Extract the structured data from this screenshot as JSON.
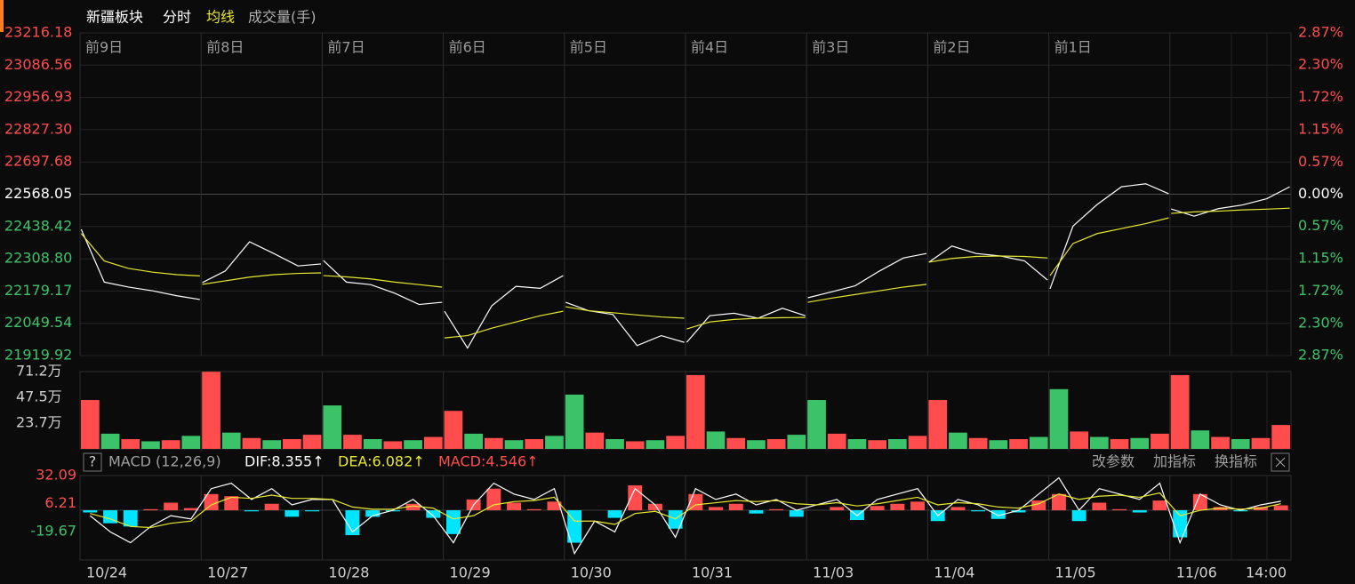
{
  "header": {
    "title": "新疆板块"
  },
  "x_labels": [
    "10/24",
    "10/27",
    "10/28",
    "10/29",
    "10/30",
    "10/31",
    "11/03",
    "11/04",
    "11/05",
    "11/06",
    "14:00"
  ],
  "chart_data": [
    {
      "type": "line",
      "day_labels": [
        "前9日",
        "前8日",
        "前7日",
        "前6日",
        "前5日",
        "前4日",
        "前3日",
        "前2日",
        "前1日"
      ],
      "xlim": [
        0,
        10
      ],
      "ylim": [
        21919.92,
        23216.18
      ],
      "yticks": [
        23216.18,
        23086.56,
        22956.93,
        {
          "value": 22827.3,
          "label": "22827.30"
        },
        22697.68,
        22568.05,
        22438.42,
        {
          "value": 22308.8,
          "label": "22308.80"
        },
        22179.17,
        22049.54,
        21919.92
      ],
      "y2lim": [
        -2.87,
        2.87
      ],
      "y2ticks": [
        {
          "value": 2.87,
          "label": "2.87%"
        },
        {
          "value": 2.3,
          "label": "2.30%"
        },
        {
          "value": 1.72,
          "label": "1.72%"
        },
        {
          "value": 1.15,
          "label": "1.15%"
        },
        {
          "value": 0.57,
          "label": "0.57%"
        },
        {
          "value": 0,
          "label": "0.00%"
        },
        {
          "value": -0.57,
          "label": "0.57%"
        },
        {
          "value": -1.15,
          "label": "1.15%"
        },
        {
          "value": -1.72,
          "label": "1.72%"
        },
        {
          "value": -2.3,
          "label": "2.30%"
        },
        {
          "value": -2.87,
          "label": "2.87%"
        }
      ],
      "grid": true,
      "x": [
        0.01,
        0.2,
        0.4,
        0.6,
        0.8,
        0.99,
        1,
        1.01,
        1.2,
        1.4,
        1.6,
        1.8,
        1.99,
        2,
        2.01,
        2.2,
        2.4,
        2.6,
        2.8,
        2.99,
        3,
        3.01,
        3.2,
        3.4,
        3.6,
        3.8,
        3.99,
        4,
        4.01,
        4.2,
        4.4,
        4.6,
        4.8,
        4.99,
        5,
        5.01,
        5.2,
        5.4,
        5.6,
        5.8,
        5.99,
        6,
        6.01,
        6.2,
        6.4,
        6.6,
        6.8,
        6.99,
        7,
        7.01,
        7.2,
        7.4,
        7.6,
        7.8,
        7.99,
        8,
        8.01,
        8.2,
        8.4,
        8.6,
        8.8,
        8.99,
        9,
        9.01,
        9.2,
        9.4,
        9.6,
        9.8,
        9.99
      ],
      "series": [
        {
          "name": "分时",
          "color": "#ffffff",
          "values": [
            22427,
            22215,
            22195,
            22180,
            22160,
            22145,
            null,
            22213,
            22260,
            22377,
            22330,
            22280,
            22288,
            null,
            22302,
            22215,
            22205,
            22170,
            22125,
            22134,
            null,
            22098,
            21950,
            22120,
            22198,
            22190,
            22241,
            null,
            22134,
            22100,
            22085,
            21960,
            22000,
            21973,
            null,
            21973,
            22080,
            22090,
            22070,
            22110,
            22080,
            null,
            22152,
            22175,
            22200,
            22259,
            22312,
            22330,
            null,
            22295,
            22360,
            22330,
            22320,
            22300,
            22223,
            null,
            22188,
            22440,
            22527,
            22598,
            22610,
            22570,
            null,
            22509,
            22480,
            22510,
            22525,
            22550,
            22598
          ]
        },
        {
          "name": "均线",
          "color": "#e8e832",
          "values": [
            22410,
            22300,
            22270,
            22255,
            22245,
            22240,
            null,
            22206,
            22220,
            22235,
            22245,
            22250,
            22252,
            null,
            22241,
            22236,
            22228,
            22215,
            22205,
            22195,
            null,
            21991,
            22000,
            22030,
            22055,
            22080,
            22098,
            null,
            22116,
            22100,
            22092,
            22083,
            22075,
            22070,
            null,
            22027,
            22055,
            22065,
            22070,
            22072,
            22073,
            null,
            22134,
            22150,
            22165,
            22180,
            22195,
            22206,
            null,
            22295,
            22310,
            22318,
            22320,
            22318,
            22312,
            null,
            22241,
            22370,
            22410,
            22430,
            22450,
            22473,
            null,
            22491,
            22497,
            22500,
            22505,
            22508,
            22512
          ]
        }
      ]
    },
    {
      "type": "bar",
      "title": "成交量(手)",
      "ylim": [
        0,
        71.2
      ],
      "yticks": [
        {
          "value": 71.2,
          "label": "71.2万"
        },
        {
          "value": 47.5,
          "label": "47.5万"
        },
        {
          "value": 23.7,
          "label": "23.7万"
        }
      ],
      "up_color": "#ff4d4d",
      "down_color": "#3cc36a",
      "values": [
        45,
        14,
        9,
        7,
        8,
        12,
        71,
        15,
        10,
        8,
        9,
        13,
        40,
        13,
        9,
        7,
        8,
        11,
        35,
        14,
        10,
        8,
        9,
        12,
        50,
        15,
        9,
        7,
        8,
        12,
        68,
        16,
        10,
        8,
        9,
        13,
        45,
        14,
        9,
        8,
        9,
        12,
        45,
        15,
        10,
        8,
        9,
        11,
        55,
        16,
        11,
        9,
        10,
        14,
        68,
        17,
        11,
        9,
        10,
        22
      ],
      "up": [
        true,
        false,
        true,
        false,
        true,
        false,
        true,
        false,
        true,
        false,
        true,
        true,
        false,
        true,
        false,
        true,
        false,
        true,
        true,
        false,
        true,
        false,
        true,
        false,
        false,
        true,
        false,
        true,
        false,
        true,
        true,
        false,
        true,
        false,
        true,
        false,
        false,
        true,
        false,
        true,
        false,
        true,
        true,
        false,
        true,
        false,
        true,
        false,
        false,
        true,
        false,
        true,
        false,
        true,
        true,
        false,
        true,
        false,
        true,
        true
      ]
    },
    {
      "type": "macd",
      "title": "MACD (12,26,9)",
      "ylim": [
        -45.96,
        32.09
      ],
      "yticks": [
        32.09,
        6.21,
        -19.67
      ],
      "buttons": [
        "改参数",
        "加指标",
        "换指标"
      ],
      "help": "?",
      "pos_color": "#ff4d4d",
      "neg_color": "#00e5ff",
      "series": [
        {
          "label": "DIF:8.355↑",
          "color": "#ffffff",
          "values": [
            -5,
            -20,
            -30,
            -15,
            -5,
            -8,
            20,
            25,
            10,
            20,
            5,
            10,
            10,
            -20,
            -5,
            0,
            10,
            -5,
            -30,
            5,
            25,
            15,
            10,
            20,
            -40,
            -10,
            -20,
            20,
            5,
            -25,
            20,
            10,
            15,
            5,
            10,
            0,
            5,
            10,
            -5,
            10,
            15,
            20,
            -5,
            10,
            5,
            -5,
            0,
            15,
            30,
            0,
            20,
            15,
            10,
            25,
            -30,
            15,
            5,
            0,
            5,
            8.355
          ]
        },
        {
          "label": "DEA:6.082↑",
          "color": "#e8e832",
          "values": [
            -3,
            -8,
            -15,
            -16,
            -12,
            -10,
            5,
            12,
            11,
            14,
            11,
            11,
            10,
            3,
            1,
            1,
            4,
            2,
            -8,
            -5,
            5,
            8,
            9,
            12,
            -10,
            -10,
            -13,
            -3,
            -1,
            -8,
            5,
            7,
            9,
            8,
            9,
            6,
            5,
            7,
            4,
            6,
            9,
            12,
            5,
            7,
            6,
            3,
            2,
            6,
            15,
            10,
            13,
            14,
            12,
            16,
            -5,
            0,
            2,
            1,
            2,
            6.082
          ]
        }
      ],
      "histogram": {
        "label": "MACD:4.546↑",
        "color": "#ff4d4d",
        "values": [
          -2,
          -12,
          -15,
          1,
          7,
          2,
          15,
          13,
          -1,
          6,
          -6,
          -1,
          0,
          -23,
          -6,
          -1,
          6,
          -7,
          -22,
          10,
          20,
          7,
          1,
          8,
          -30,
          0,
          -7,
          23,
          6,
          -17,
          15,
          3,
          6,
          -3,
          1,
          -6,
          0,
          3,
          -9,
          4,
          6,
          8,
          -10,
          3,
          -1,
          -8,
          -2,
          9,
          15,
          -10,
          7,
          1,
          -2,
          9,
          -25,
          15,
          3,
          -1,
          3,
          4.546
        ]
      }
    }
  ]
}
